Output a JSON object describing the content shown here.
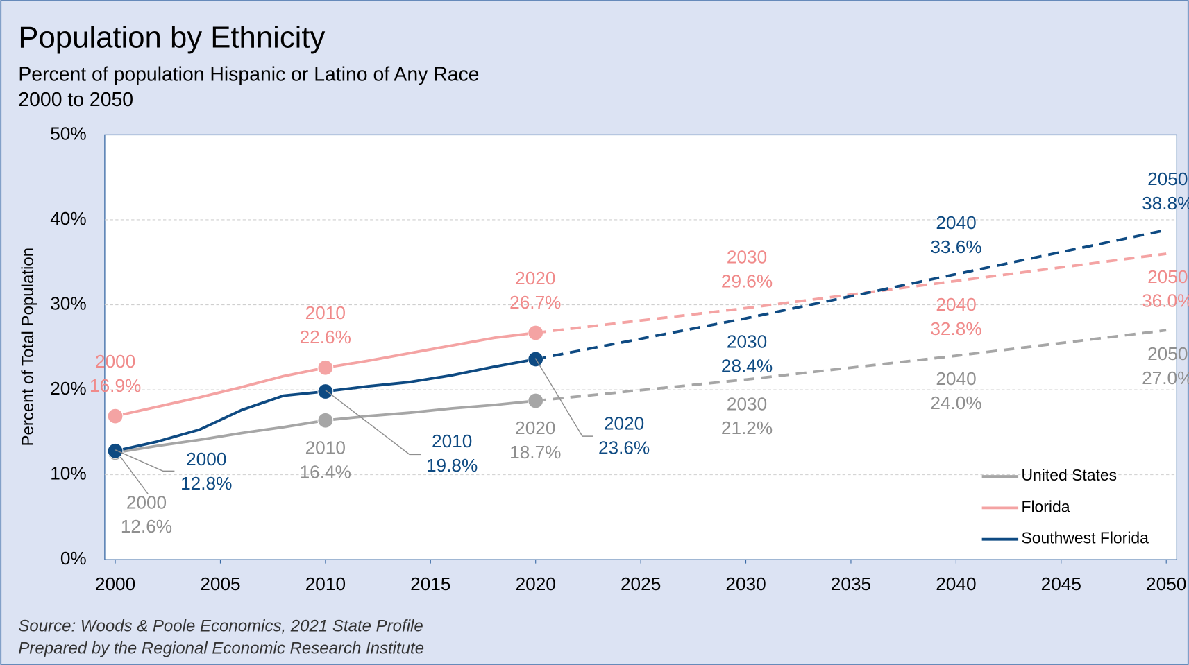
{
  "chart_data": {
    "type": "line",
    "title": "Population by Ethnicity",
    "subtitle": [
      "Percent of population Hispanic or Latino of Any Race",
      "2000 to 2050"
    ],
    "ylabel": "Percent of Total Population",
    "source": [
      "Source: Woods & Poole Economics, 2021 State Profile",
      "Prepared by the Regional Economic Research Institute"
    ],
    "x": [
      2000,
      2002,
      2004,
      2006,
      2008,
      2010,
      2012,
      2014,
      2016,
      2018,
      2020,
      2030,
      2040,
      2050
    ],
    "series": [
      {
        "name": "United States",
        "color": "#a6a6a6",
        "values": [
          12.6,
          13.4,
          14.1,
          14.9,
          15.6,
          16.4,
          16.9,
          17.3,
          17.8,
          18.2,
          18.7,
          21.2,
          24.0,
          27.0
        ],
        "value_labels": [
          "12.6%",
          null,
          null,
          null,
          null,
          "16.4%",
          null,
          null,
          null,
          null,
          "18.7%",
          "21.2%",
          "24.0%",
          "27.0%"
        ]
      },
      {
        "name": "Florida",
        "color": "#f4a3a3",
        "values": [
          16.9,
          18.0,
          19.1,
          20.3,
          21.6,
          22.6,
          23.4,
          24.3,
          25.2,
          26.1,
          26.7,
          29.6,
          32.8,
          36.0
        ],
        "value_labels": [
          "16.9%",
          null,
          null,
          null,
          null,
          "22.6%",
          null,
          null,
          null,
          null,
          "26.7%",
          "29.6%",
          "32.8%",
          "36.0%"
        ]
      },
      {
        "name": "Southwest Florida",
        "color": "#0e4a82",
        "values": [
          12.8,
          13.9,
          15.3,
          17.6,
          19.3,
          19.8,
          20.4,
          20.9,
          21.7,
          22.7,
          23.6,
          28.4,
          33.6,
          38.8
        ],
        "value_labels": [
          "12.8%",
          null,
          null,
          null,
          null,
          "19.8%",
          null,
          null,
          null,
          null,
          "23.6%",
          "28.4%",
          "33.6%",
          "38.8%"
        ]
      }
    ],
    "marker_x": [
      2000,
      2010,
      2020
    ],
    "dashed_from": 2020,
    "xlim": [
      1999.5,
      2050.5
    ],
    "xticks": [
      2000,
      2005,
      2010,
      2015,
      2020,
      2025,
      2030,
      2035,
      2040,
      2045,
      2050
    ],
    "ylim": [
      0,
      50
    ],
    "yticks": [
      {
        "value": 0,
        "label": "0%"
      },
      {
        "value": 10,
        "label": "10%"
      },
      {
        "value": 20,
        "label": "20%"
      },
      {
        "value": 30,
        "label": "30%"
      },
      {
        "value": 40,
        "label": "40%"
      },
      {
        "value": 50,
        "label": "50%"
      }
    ],
    "grid": true,
    "legend": "lower right"
  }
}
